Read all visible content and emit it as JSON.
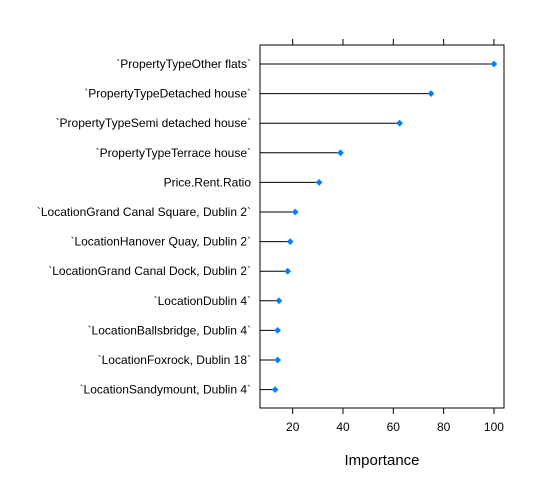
{
  "chart_data": {
    "type": "dot",
    "categories": [
      "`PropertyTypeOther flats`",
      "`PropertyTypeDetached house`",
      "`PropertyTypeSemi detached house`",
      "`PropertyTypeTerrace house`",
      "Price.Rent.Ratio",
      "`LocationGrand Canal Square, Dublin 2`",
      "`LocationHanover Quay, Dublin 2`",
      "`LocationGrand Canal Dock, Dublin 2`",
      "`LocationDublin 4`",
      "`LocationBallsbridge, Dublin 4`",
      "`LocationFoxrock, Dublin 18`",
      "`LocationSandymount, Dublin 4`"
    ],
    "values": [
      100,
      75,
      62.5,
      39,
      30.5,
      21,
      19,
      18,
      14.5,
      14,
      14,
      13
    ],
    "xlabel": "Importance",
    "ylabel": "",
    "xlim": [
      7,
      104
    ],
    "xticks": [
      20,
      40,
      60,
      80,
      100
    ],
    "grid": false,
    "point_color": "#0080ff",
    "line_color": "#000000"
  }
}
